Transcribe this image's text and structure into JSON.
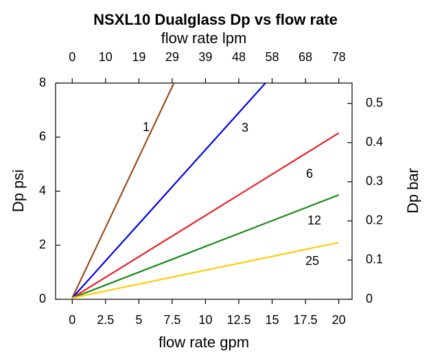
{
  "chart_data": {
    "type": "line",
    "title": "NSXL10 Dualglass Dp vs flow rate",
    "x2_label": "flow rate lpm",
    "x_label": "flow rate gpm",
    "y_label": "Dp psi",
    "y2_label": "Dp bar",
    "xlim": [
      -1.25,
      21
    ],
    "xticks": [
      0,
      2.5,
      5,
      7.5,
      10,
      12.5,
      15,
      17.5,
      20
    ],
    "x2lim": [
      -4.73,
      79.49
    ],
    "x2ticks": [
      0,
      {
        "value": 9.46,
        "label": "10"
      },
      {
        "value": 18.93,
        "label": "19"
      },
      {
        "value": 28.39,
        "label": "29"
      },
      {
        "value": 37.85,
        "label": "39"
      },
      {
        "value": 47.32,
        "label": "48"
      },
      {
        "value": 56.78,
        "label": "58"
      },
      {
        "value": 66.24,
        "label": "68"
      },
      {
        "value": 75.71,
        "label": "78"
      }
    ],
    "ylim": [
      0,
      8
    ],
    "yticks": [
      0,
      2,
      4,
      6,
      8
    ],
    "y2lim": [
      0,
      0.552
    ],
    "y2ticks": [
      0,
      0.1,
      0.2,
      0.3,
      0.4,
      0.5
    ],
    "series": [
      {
        "name": "1",
        "color": "#9c4a1a",
        "x": [
          0,
          7.63
        ],
        "values": [
          0.05,
          8
        ]
      },
      {
        "name": "3",
        "color": "#0000ee",
        "x": [
          0,
          14.5
        ],
        "values": [
          0.05,
          8
        ]
      },
      {
        "name": "6",
        "color": "#ee1c25",
        "x": [
          0,
          20
        ],
        "values": [
          0.05,
          6.15
        ]
      },
      {
        "name": "12",
        "color": "#118811",
        "x": [
          0,
          20
        ],
        "values": [
          0.05,
          3.86
        ]
      },
      {
        "name": "25",
        "color": "#ffcc00",
        "x": [
          0,
          20
        ],
        "values": [
          0.05,
          2.1
        ]
      }
    ]
  }
}
